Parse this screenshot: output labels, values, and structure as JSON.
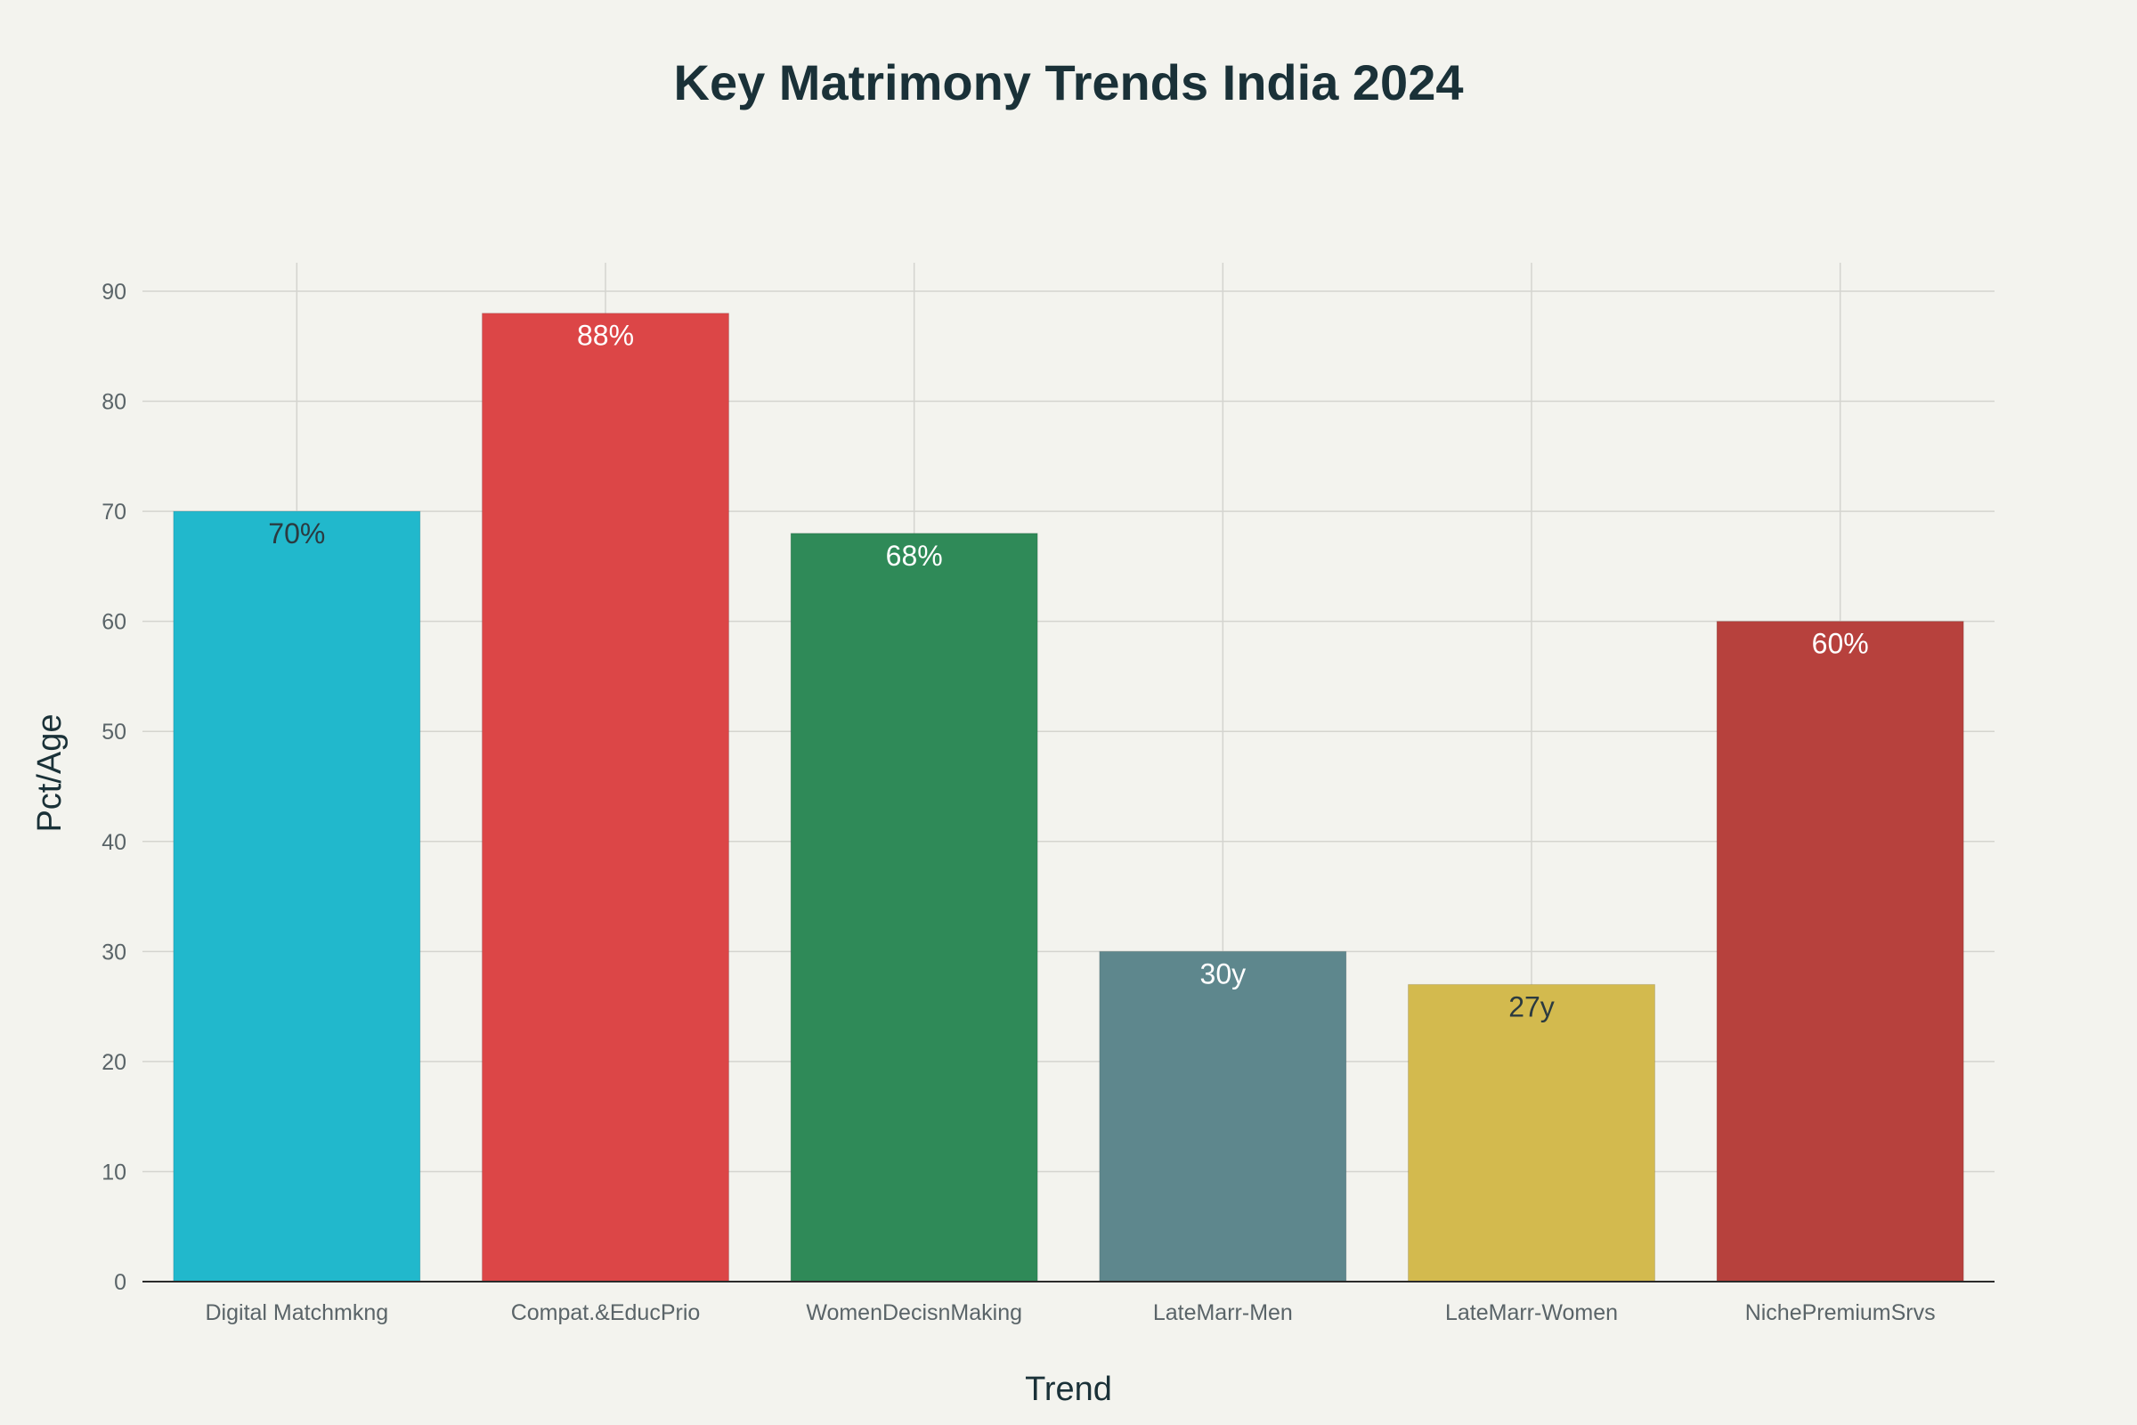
{
  "chart_data": {
    "type": "bar",
    "title": "Key Matrimony Trends India 2024",
    "xlabel": "Trend",
    "ylabel": "Pct/Age",
    "categories": [
      "Digital Matchmkng",
      "Compat.&EducPrio",
      "WomenDecisnMaking",
      "LateMarr-Men",
      "LateMarr-Women",
      "NichePremiumSrvs"
    ],
    "values": [
      70,
      88,
      68,
      30,
      27,
      60
    ],
    "data_labels": [
      "70%",
      "88%",
      "68%",
      "30y",
      "27y",
      "60%"
    ],
    "colors": [
      "#21b8cc",
      "#dc4647",
      "#2f8a58",
      "#5e878d",
      "#d3ba4e",
      "#b7413d"
    ],
    "label_colors": [
      "#2b3a40",
      "#ffffff",
      "#ffffff",
      "#ffffff",
      "#2b3a40",
      "#ffffff"
    ],
    "yticks": [
      0,
      10,
      20,
      30,
      40,
      50,
      60,
      70,
      80,
      90
    ],
    "ylim": [
      0,
      92.5
    ],
    "grid": true,
    "legend": "none"
  }
}
